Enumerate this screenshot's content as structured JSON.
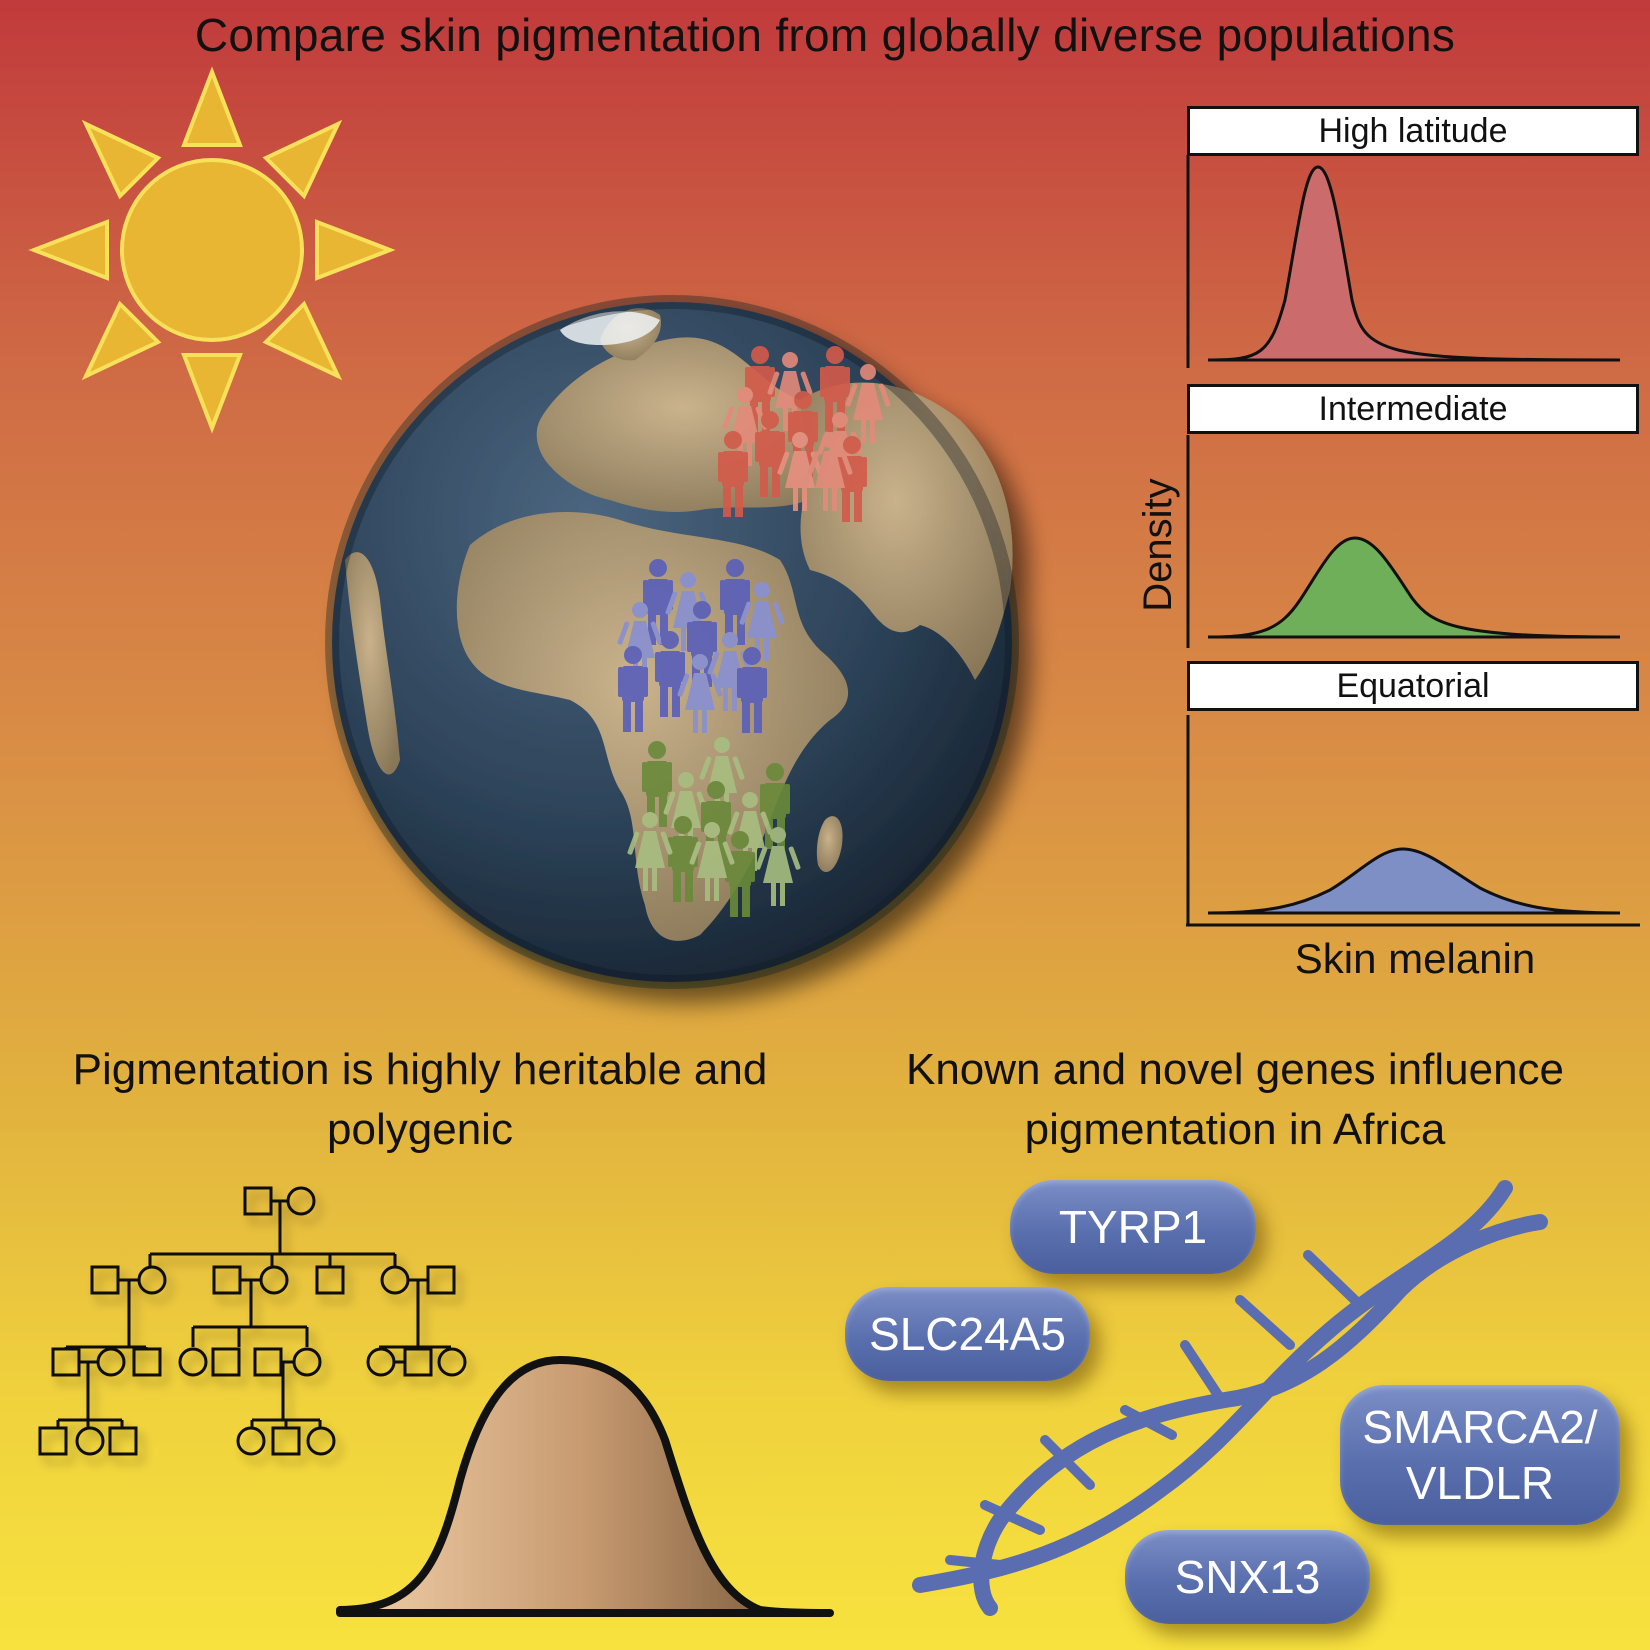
{
  "title": "Compare skin pigmentation from globally diverse populations",
  "panels": {
    "high_latitude": "High latitude",
    "intermediate": "Intermediate",
    "equatorial": "Equatorial"
  },
  "axes": {
    "y_label": "Density",
    "x_label": "Skin melanin"
  },
  "captions": {
    "left": "Pigmentation is highly heritable and polygenic",
    "right": "Known and novel genes influence pigmentation in Africa"
  },
  "genes": {
    "tyrp1": "TYRP1",
    "slc24a5": "SLC24A5",
    "smarca2_line1": "SMARCA2/",
    "smarca2_line2": "VLDLR",
    "snx13": "SNX13"
  },
  "icons": [
    "sun-icon",
    "globe-icon",
    "population-figures",
    "pedigree-chart",
    "bell-curve",
    "dna-helix"
  ],
  "colors": {
    "high_latitude": "#cc6b6b",
    "intermediate": "#6faf5a",
    "equatorial": "#7d8fc5",
    "sun": "#e8b632"
  }
}
